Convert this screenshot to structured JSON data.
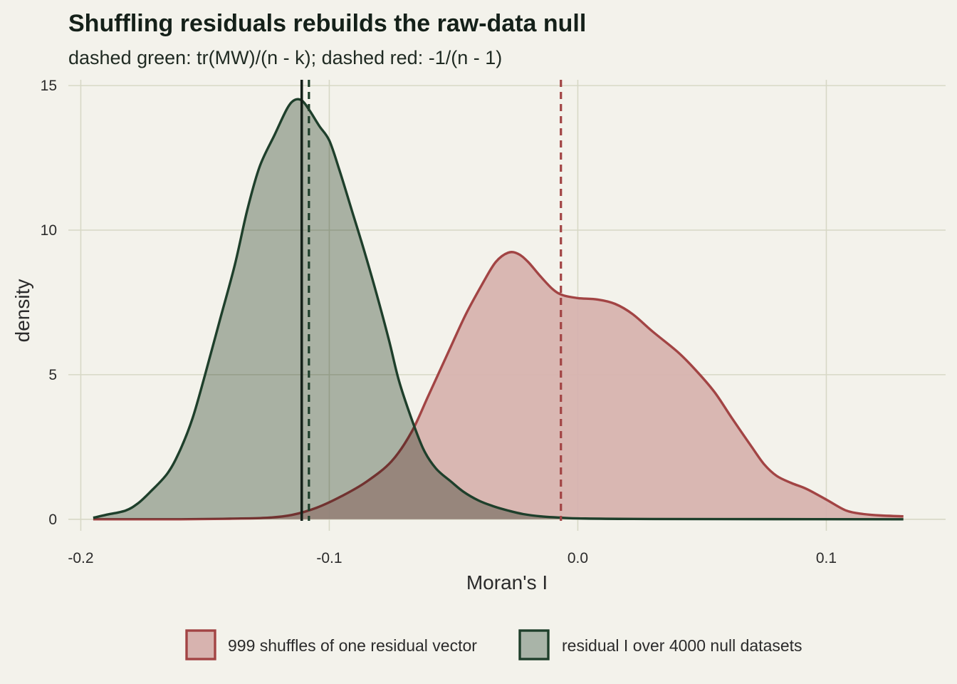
{
  "chart_data": {
    "type": "area",
    "title": "Shuffling residuals rebuilds the raw-data null",
    "subtitle": "dashed green: tr(MW)/(n - k); dashed red: -1/(n - 1)",
    "xlabel": "Moran's I",
    "ylabel": "density",
    "xlim": [
      -0.205,
      0.148
    ],
    "ylim": [
      -0.4,
      15.2
    ],
    "x_ticks": [
      -0.2,
      -0.1,
      0.0,
      0.1
    ],
    "x_tick_labels": [
      "-0.2",
      "-0.1",
      "0.0",
      "0.1"
    ],
    "y_ticks": [
      0,
      5,
      10,
      15
    ],
    "y_tick_labels": [
      "0",
      "5",
      "10",
      "15"
    ],
    "grid": true,
    "legend_position": "bottom",
    "series": [
      {
        "name": "999 shuffles of one residual vector",
        "fill": "#d7b3af",
        "stroke": "#a24444",
        "points": [
          [
            -0.195,
            0.0
          ],
          [
            -0.16,
            0.0
          ],
          [
            -0.14,
            0.02
          ],
          [
            -0.125,
            0.05
          ],
          [
            -0.115,
            0.15
          ],
          [
            -0.105,
            0.4
          ],
          [
            -0.095,
            0.8
          ],
          [
            -0.085,
            1.3
          ],
          [
            -0.075,
            2.0
          ],
          [
            -0.067,
            3.0
          ],
          [
            -0.06,
            4.3
          ],
          [
            -0.052,
            5.8
          ],
          [
            -0.045,
            7.1
          ],
          [
            -0.038,
            8.2
          ],
          [
            -0.033,
            8.9
          ],
          [
            -0.028,
            9.22
          ],
          [
            -0.024,
            9.18
          ],
          [
            -0.02,
            8.9
          ],
          [
            -0.015,
            8.4
          ],
          [
            -0.01,
            7.95
          ],
          [
            -0.006,
            7.75
          ],
          [
            0.0,
            7.65
          ],
          [
            0.008,
            7.6
          ],
          [
            0.015,
            7.45
          ],
          [
            0.022,
            7.1
          ],
          [
            0.03,
            6.5
          ],
          [
            0.04,
            5.8
          ],
          [
            0.047,
            5.2
          ],
          [
            0.055,
            4.4
          ],
          [
            0.062,
            3.5
          ],
          [
            0.07,
            2.5
          ],
          [
            0.075,
            1.9
          ],
          [
            0.08,
            1.5
          ],
          [
            0.086,
            1.25
          ],
          [
            0.092,
            1.05
          ],
          [
            0.1,
            0.68
          ],
          [
            0.108,
            0.3
          ],
          [
            0.115,
            0.18
          ],
          [
            0.122,
            0.13
          ],
          [
            0.131,
            0.1
          ]
        ]
      },
      {
        "name": "residual I over 4000 null datasets",
        "fill": "#a9b4a8",
        "stroke": "#1e3f2b",
        "points": [
          [
            -0.195,
            0.05
          ],
          [
            -0.19,
            0.15
          ],
          [
            -0.182,
            0.3
          ],
          [
            -0.177,
            0.55
          ],
          [
            -0.172,
            0.95
          ],
          [
            -0.165,
            1.6
          ],
          [
            -0.16,
            2.4
          ],
          [
            -0.155,
            3.5
          ],
          [
            -0.15,
            5.0
          ],
          [
            -0.144,
            6.9
          ],
          [
            -0.138,
            8.8
          ],
          [
            -0.133,
            10.7
          ],
          [
            -0.128,
            12.2
          ],
          [
            -0.122,
            13.3
          ],
          [
            -0.117,
            14.2
          ],
          [
            -0.114,
            14.5
          ],
          [
            -0.111,
            14.48
          ],
          [
            -0.108,
            14.15
          ],
          [
            -0.104,
            13.6
          ],
          [
            -0.1,
            13.1
          ],
          [
            -0.096,
            12.1
          ],
          [
            -0.091,
            10.7
          ],
          [
            -0.086,
            9.3
          ],
          [
            -0.081,
            7.8
          ],
          [
            -0.076,
            6.2
          ],
          [
            -0.072,
            4.8
          ],
          [
            -0.067,
            3.5
          ],
          [
            -0.062,
            2.4
          ],
          [
            -0.057,
            1.75
          ],
          [
            -0.051,
            1.3
          ],
          [
            -0.046,
            0.95
          ],
          [
            -0.04,
            0.65
          ],
          [
            -0.034,
            0.45
          ],
          [
            -0.028,
            0.3
          ],
          [
            -0.022,
            0.18
          ],
          [
            -0.015,
            0.1
          ],
          [
            -0.008,
            0.06
          ],
          [
            0.0,
            0.03
          ],
          [
            0.03,
            0.01
          ],
          [
            0.131,
            0.0
          ]
        ]
      }
    ],
    "reference_lines": [
      {
        "x": -0.1111,
        "style": "solid",
        "color": "#142019"
      },
      {
        "x": -0.1082,
        "style": "dashed",
        "color": "#1e3f2b"
      },
      {
        "x": -0.0068,
        "style": "dashed",
        "color": "#a24444"
      }
    ]
  }
}
